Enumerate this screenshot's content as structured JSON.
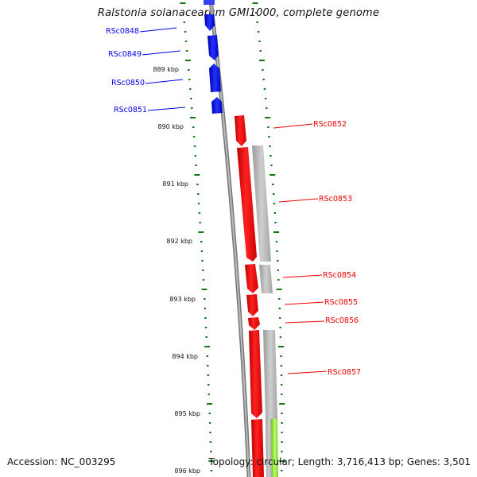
{
  "title": "Ralstonia solanacearum GMI1000, complete genome",
  "footer": {
    "accession": "Accession: NC_003295",
    "summary": "Topology: circular; Length: 3,716,413 bp; Genes: 3,501"
  },
  "colors": {
    "reverse_strand": "#0000ee",
    "forward_strand": "#ee0000",
    "feature_gray": "#bbbbbb",
    "feature_green": "#99ee55",
    "tick": "#117711",
    "backbone": "#888888"
  },
  "kbp_labels": [
    "889 kbp",
    "890 kbp",
    "891 kbp",
    "892 kbp",
    "893 kbp",
    "894 kbp",
    "895 kbp",
    "896 kbp"
  ],
  "genes_reverse": [
    "RSc0848",
    "RSc0849",
    "RSc0850",
    "RSc0851"
  ],
  "genes_forward": [
    "RSc0852",
    "RSc0853",
    "RSc0854",
    "RSc0855",
    "RSc0856",
    "RSc0857"
  ]
}
